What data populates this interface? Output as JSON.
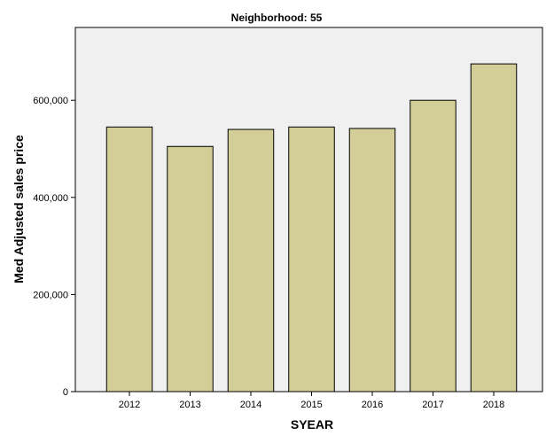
{
  "chart_data": {
    "type": "bar",
    "title": "Neighborhood: 55",
    "xlabel": "SYEAR",
    "ylabel": "Med Adjusted sales price",
    "categories": [
      "2012",
      "2013",
      "2014",
      "2015",
      "2016",
      "2017",
      "2018"
    ],
    "values": [
      545000,
      505000,
      540000,
      545000,
      542000,
      600000,
      675000
    ],
    "ylim": [
      0,
      750000
    ],
    "yticks": [
      0,
      200000,
      400000,
      600000
    ],
    "ytick_labels": [
      "0",
      "200,000",
      "400,000",
      "600,000"
    ],
    "grid": false,
    "colors": {
      "bar_fill": "#d3ce98",
      "bar_stroke": "#000000",
      "plot_background": "#f0f0f0",
      "page_background": "#ffffff"
    }
  }
}
